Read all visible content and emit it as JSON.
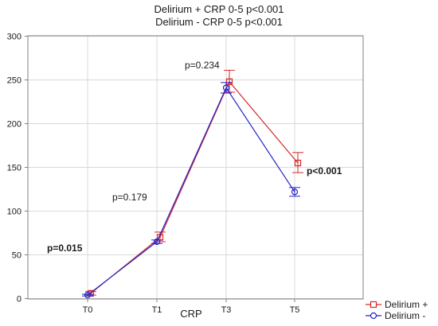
{
  "chart_data": {
    "type": "line",
    "title_line1": "Delirium + CRP 0-5 p<0.001",
    "title_line2": "Delirium - CRP 0-5 p<0.001",
    "xlabel": "CRP",
    "ylabel": "",
    "categories": [
      "T0",
      "T1",
      "T3",
      "T5"
    ],
    "ylim": [
      0,
      300
    ],
    "yticks": [
      "0",
      "50",
      "100",
      "150",
      "200",
      "250",
      "300"
    ],
    "grid": true,
    "legend_position": "bottom-right",
    "series": [
      {
        "name": "Delirium +",
        "color": "#d62728",
        "marker": "square",
        "values": [
          6,
          70,
          248,
          155
        ],
        "error_low": [
          4,
          65,
          236,
          144
        ],
        "error_high": [
          8,
          76,
          261,
          167
        ]
      },
      {
        "name": "Delirium -",
        "color": "#2323c8",
        "marker": "circle",
        "values": [
          4,
          65,
          241,
          122
        ],
        "error_low": [
          3,
          63,
          235,
          117
        ],
        "error_high": [
          5,
          67,
          247,
          127
        ]
      }
    ],
    "annotations": [
      {
        "text": "p=0.015",
        "bold": true
      },
      {
        "text": "p=0.179",
        "bold": false
      },
      {
        "text": "p=0.234",
        "bold": false
      },
      {
        "text": "p<0.001",
        "bold": true
      }
    ]
  }
}
